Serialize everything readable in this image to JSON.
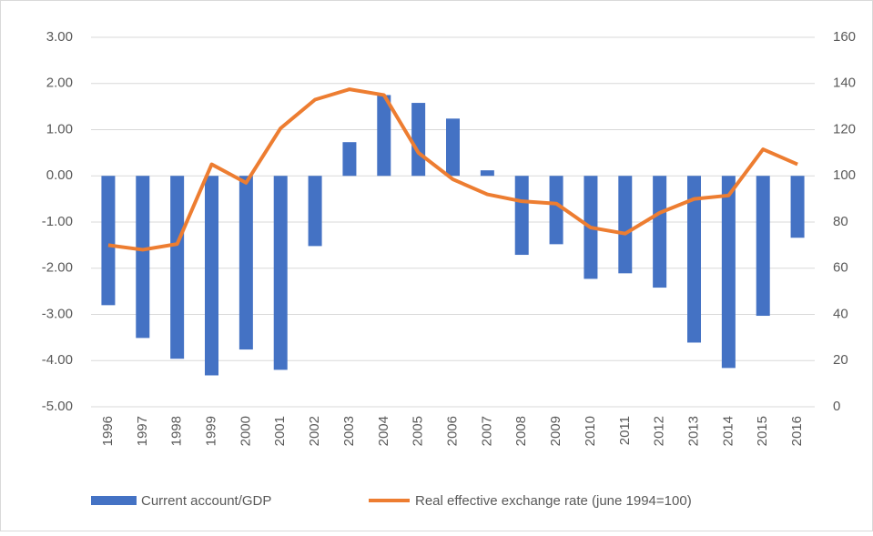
{
  "chart_data": {
    "type": "bar-line",
    "categories": [
      "1996",
      "1997",
      "1998",
      "1999",
      "2000",
      "2001",
      "2002",
      "2003",
      "2004",
      "2005",
      "2006",
      "2007",
      "2008",
      "2009",
      "2010",
      "2011",
      "2012",
      "2013",
      "2014",
      "2015",
      "2016"
    ],
    "series": [
      {
        "name": "Current account/GDP",
        "type": "bar",
        "color": "#4472c4",
        "values": [
          -2.8,
          -3.51,
          -3.96,
          -4.32,
          -3.76,
          -4.2,
          -1.52,
          0.73,
          1.75,
          1.58,
          1.24,
          0.12,
          -1.71,
          -1.48,
          -2.23,
          -2.11,
          -2.42,
          -3.61,
          -4.16,
          -3.03,
          -1.34
        ]
      },
      {
        "name": "Real effective exchange rate (june 1994=100)",
        "type": "line",
        "color": "#ed7d31",
        "axis": "y2",
        "values": [
          70,
          68,
          70.5,
          105,
          97,
          120.6,
          133,
          137.5,
          135,
          110,
          98.5,
          92,
          89,
          88,
          77.6,
          75,
          84,
          90,
          91.5,
          111.5,
          105
        ]
      }
    ],
    "ylim": [
      -5,
      3
    ],
    "yticks": [
      {
        "value": -5,
        "label": "-5.00"
      },
      {
        "value": -4,
        "label": "-4.00"
      },
      {
        "value": -3,
        "label": "-3.00"
      },
      {
        "value": -2,
        "label": "-2.00"
      },
      {
        "value": -1,
        "label": "-1.00"
      },
      {
        "value": 0,
        "label": "0.00"
      },
      {
        "value": 1,
        "label": "1.00"
      },
      {
        "value": 2,
        "label": "2.00"
      },
      {
        "value": 3,
        "label": "3.00"
      }
    ],
    "y2lim": [
      0,
      160
    ],
    "y2ticks": [
      0,
      20,
      40,
      60,
      80,
      100,
      120,
      140,
      160
    ],
    "grid": true
  }
}
